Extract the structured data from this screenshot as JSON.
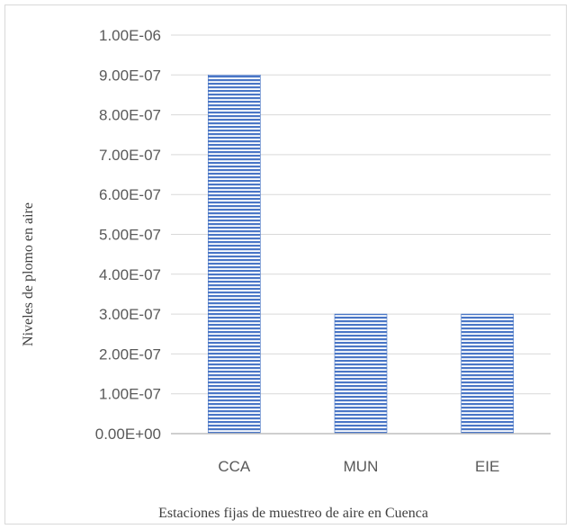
{
  "chart_data": {
    "type": "bar",
    "categories": [
      "CCA",
      "MUN",
      "EIE"
    ],
    "values": [
      9e-07,
      3e-07,
      3e-07
    ],
    "ylim": [
      0,
      1e-06
    ],
    "yticks": [
      "0.00E+00",
      "1.00E-07",
      "2.00E-07",
      "3.00E-07",
      "4.00E-07",
      "5.00E-07",
      "6.00E-07",
      "7.00E-07",
      "8.00E-07",
      "9.00E-07",
      "1.00E-06"
    ],
    "xlabel": "Estaciones fijas de muestreo de aire en Cuenca",
    "ylabel": "Niveles de plomo en aire",
    "grid": true,
    "legend": "none",
    "bar_color": "#4472c4"
  }
}
